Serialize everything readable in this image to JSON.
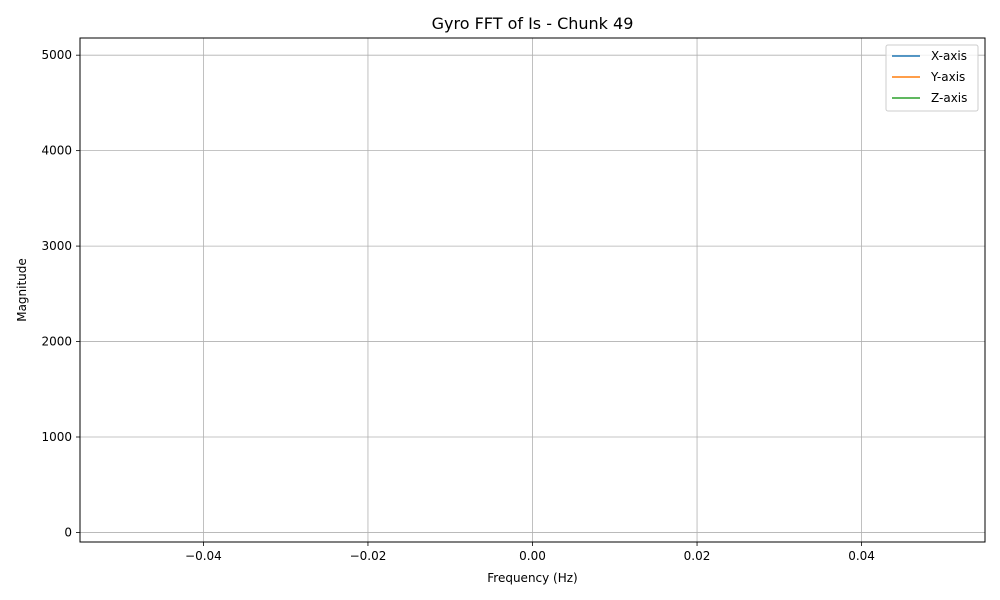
{
  "chart_data": {
    "type": "line",
    "title": "Gyro FFT of Is - Chunk 49",
    "xlabel": "Frequency (Hz)",
    "ylabel": "Magnitude",
    "xlim": [
      -0.055,
      0.055
    ],
    "ylim": [
      -100,
      5180
    ],
    "xticks": [
      -0.04,
      -0.02,
      0.0,
      0.02,
      0.04
    ],
    "xtick_labels": [
      "−0.04",
      "−0.02",
      "0.00",
      "0.02",
      "0.04"
    ],
    "yticks": [
      0,
      1000,
      2000,
      3000,
      4000,
      5000
    ],
    "ytick_labels": [
      "0",
      "1000",
      "2000",
      "3000",
      "4000",
      "5000"
    ],
    "grid": true,
    "legend_position": "top-right",
    "series": [
      {
        "name": "X-axis",
        "color": "#1f77b4",
        "x": [],
        "y": []
      },
      {
        "name": "Y-axis",
        "color": "#ff7f0e",
        "x": [],
        "y": []
      },
      {
        "name": "Z-axis",
        "color": "#2ca02c",
        "x": [],
        "y": []
      }
    ]
  }
}
